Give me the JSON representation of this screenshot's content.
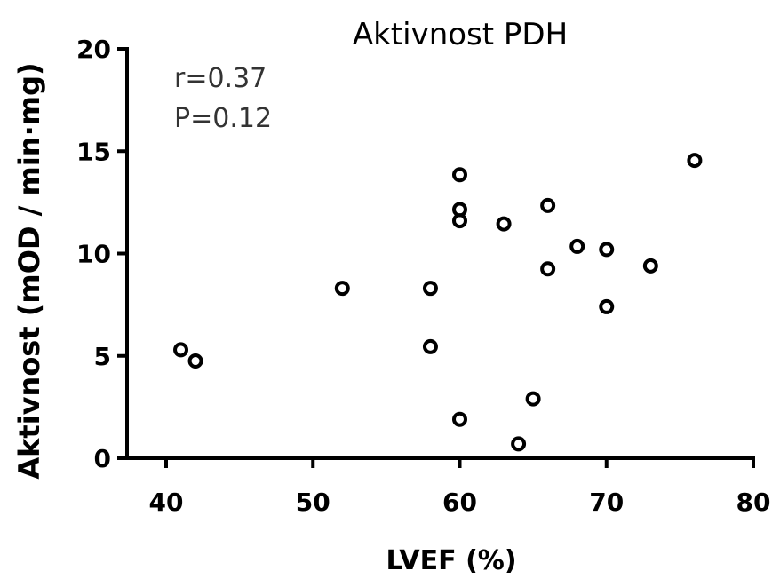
{
  "chart_data": {
    "type": "scatter",
    "title": "Aktivnost PDH",
    "xlabel": "LVEF  (%)",
    "ylabel": "Aktivnost (mOD / min·mg)",
    "xlim": [
      38,
      80
    ],
    "ylim": [
      0,
      20
    ],
    "x_ticks": [
      40,
      50,
      60,
      70,
      80
    ],
    "y_ticks": [
      0,
      5,
      10,
      15,
      20
    ],
    "grid": false,
    "marker": "open-circle",
    "annotations": [
      "r=0.37",
      "P=0.12"
    ],
    "points": [
      {
        "x": 41,
        "y": 5.3
      },
      {
        "x": 42,
        "y": 4.75
      },
      {
        "x": 52,
        "y": 8.3
      },
      {
        "x": 58,
        "y": 8.3
      },
      {
        "x": 58,
        "y": 5.45
      },
      {
        "x": 60,
        "y": 13.85
      },
      {
        "x": 60,
        "y": 12.15
      },
      {
        "x": 60,
        "y": 11.6
      },
      {
        "x": 60,
        "y": 1.9
      },
      {
        "x": 63,
        "y": 11.45
      },
      {
        "x": 64,
        "y": 0.7
      },
      {
        "x": 65,
        "y": 2.9
      },
      {
        "x": 66,
        "y": 12.35
      },
      {
        "x": 66,
        "y": 9.25
      },
      {
        "x": 68,
        "y": 10.35
      },
      {
        "x": 70,
        "y": 10.2
      },
      {
        "x": 70,
        "y": 7.4
      },
      {
        "x": 73,
        "y": 9.4
      },
      {
        "x": 76,
        "y": 14.55
      }
    ]
  }
}
